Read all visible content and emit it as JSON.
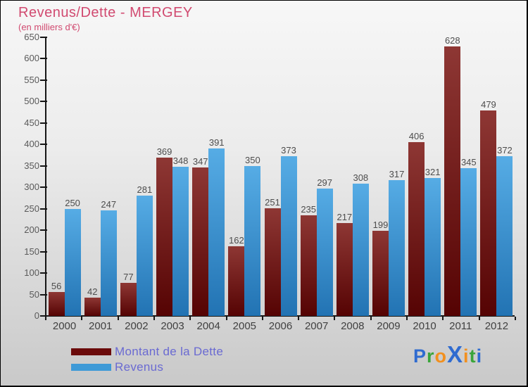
{
  "header": {
    "title": "Revenus/Dette - MERGEY",
    "subtitle": "(en milliers d'€)"
  },
  "chart_data": {
    "type": "bar",
    "title": "Revenus/Dette - MERGEY",
    "subtitle": "(en milliers d'€)",
    "categories": [
      "2000",
      "2001",
      "2002",
      "2003",
      "2004",
      "2005",
      "2006",
      "2007",
      "2008",
      "2009",
      "2010",
      "2011",
      "2012"
    ],
    "series": [
      {
        "name": "Montant de la Dette",
        "values": [
          56,
          42,
          77,
          369,
          347,
          162,
          251,
          235,
          217,
          199,
          406,
          628,
          479
        ],
        "bar_color_top": "#8e3734",
        "bar_color_bottom": "#550303",
        "legend_color": "#6b0a0a"
      },
      {
        "name": "Revenus",
        "values": [
          250,
          247,
          281,
          348,
          391,
          350,
          373,
          297,
          308,
          317,
          321,
          345,
          372
        ],
        "bar_color_top": "#56ace5",
        "bar_color_bottom": "#2273b3",
        "legend_color": "#3e9ad7"
      }
    ],
    "ylim": [
      0,
      650
    ],
    "ytick_step": 50,
    "grid": false,
    "legend_position": "bottom-left",
    "value_labels": true,
    "xlabel": "",
    "ylabel": ""
  },
  "styles": {
    "title_color": "#d14a70",
    "legend_text_color": "#6a6ad2",
    "value_label_color": "#4d4d4d",
    "axis_label_color": "#5a5a5a"
  },
  "logo": {
    "text": "Proxiti",
    "letters": [
      {
        "ch": "P",
        "color": "#2f6bd0"
      },
      {
        "ch": "r",
        "color": "#3aa53a"
      },
      {
        "ch": "o",
        "color": "#f2901e"
      },
      {
        "ch": "X",
        "color": "#2f6bd0"
      },
      {
        "ch": "i",
        "color": "#f2901e"
      },
      {
        "ch": "t",
        "color": "#3aa53a"
      },
      {
        "ch": "i",
        "color": "#2f6bd0"
      }
    ]
  }
}
